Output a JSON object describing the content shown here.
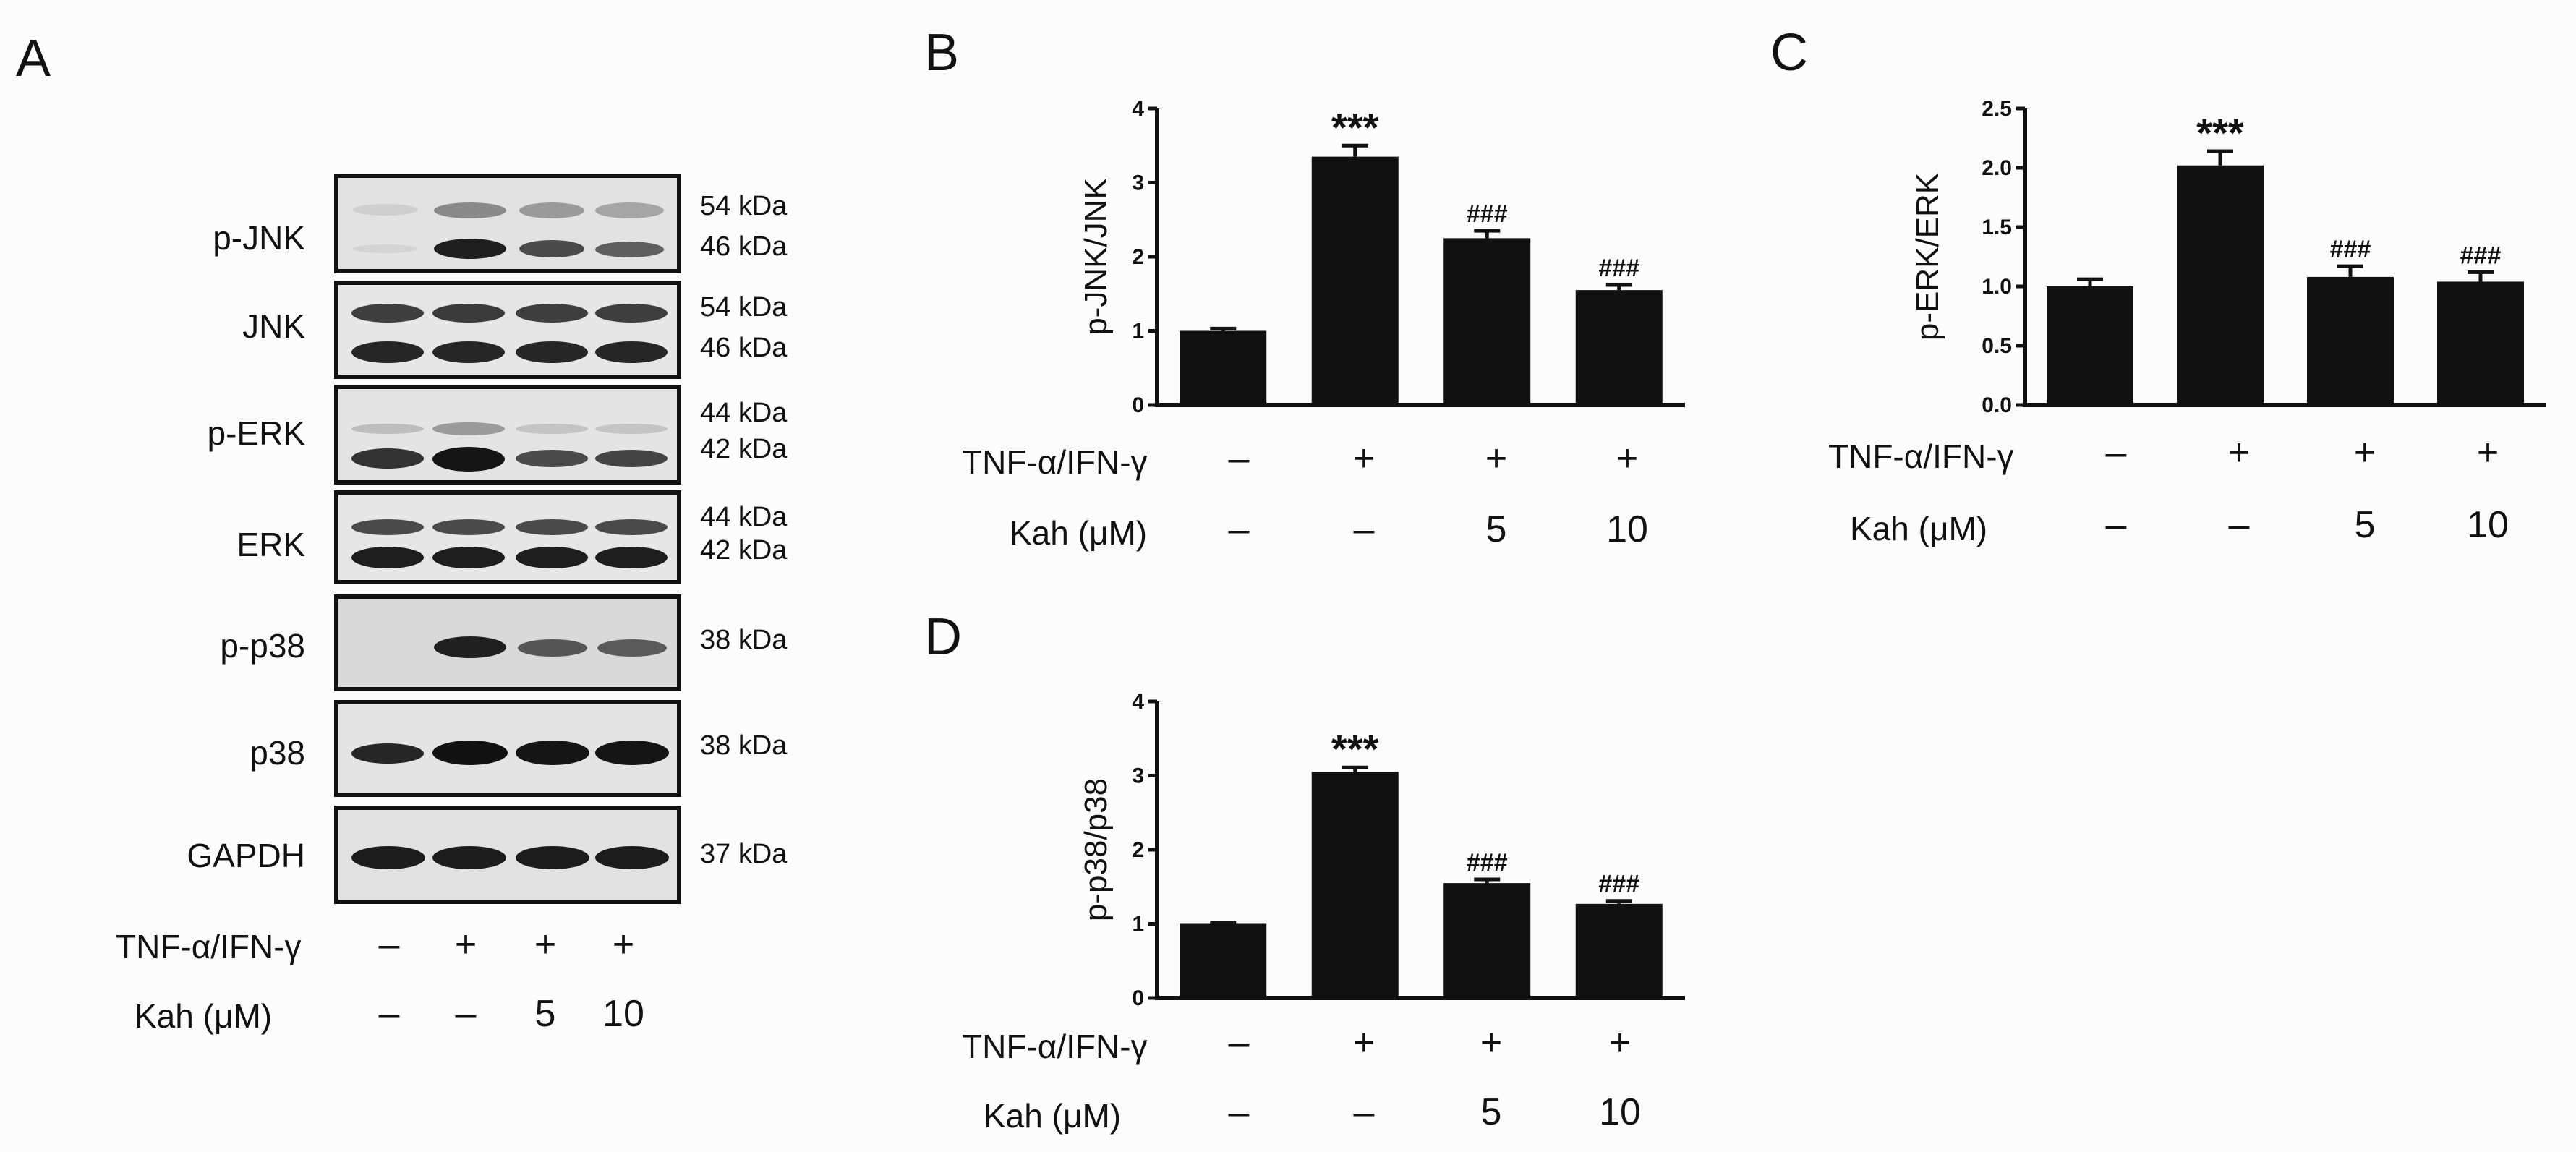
{
  "panels": {
    "A": "A",
    "B": "B",
    "C": "C",
    "D": "D"
  },
  "colors": {
    "bar": "#111111",
    "blot_bg_light": "#e4e4e4",
    "band": "#222222"
  },
  "blots": [
    {
      "name": "p-JNK",
      "kda": [
        "54 kDa",
        "46 kDa"
      ]
    },
    {
      "name": "JNK",
      "kda": [
        "54 kDa",
        "46 kDa"
      ]
    },
    {
      "name": "p-ERK",
      "kda": [
        "44 kDa",
        "42 kDa"
      ]
    },
    {
      "name": "ERK",
      "kda": [
        "44 kDa",
        "42 kDa"
      ]
    },
    {
      "name": "p-p38",
      "kda": [
        "38 kDa"
      ]
    },
    {
      "name": "p38",
      "kda": [
        "38 kDa"
      ]
    },
    {
      "name": "GAPDH",
      "kda": [
        "37 kDa"
      ]
    }
  ],
  "treatment": {
    "row1_label": "TNF-α/IFN-γ",
    "row1": [
      "–",
      "+",
      "+",
      "+"
    ],
    "row2_label": "Kah (μM)",
    "row2": [
      "–",
      "–",
      "5",
      "10"
    ]
  },
  "chart_data": [
    {
      "panel": "B",
      "type": "bar",
      "ylabel": "p-JNK/JNK",
      "ylim": [
        0,
        4
      ],
      "yticks": [
        "0",
        "1",
        "2",
        "3",
        "4"
      ],
      "categories": [
        "Control",
        "TNF-α/IFN-γ",
        "TNF-α/IFN-γ + Kah 5",
        "TNF-α/IFN-γ + Kah 10"
      ],
      "values": [
        1.0,
        3.35,
        2.25,
        1.55
      ],
      "errors": [
        0.03,
        0.15,
        0.1,
        0.07
      ],
      "annotations": [
        "",
        "***",
        "###",
        "###"
      ]
    },
    {
      "panel": "C",
      "type": "bar",
      "ylabel": "p-ERK/ERK",
      "ylim": [
        0,
        2.5
      ],
      "yticks": [
        "0.0",
        "0.5",
        "1.0",
        "1.5",
        "2.0",
        "2.5"
      ],
      "categories": [
        "Control",
        "TNF-α/IFN-γ",
        "TNF-α/IFN-γ + Kah 5",
        "TNF-α/IFN-γ + Kah 10"
      ],
      "values": [
        1.0,
        2.02,
        1.08,
        1.04
      ],
      "errors": [
        0.06,
        0.12,
        0.09,
        0.08
      ],
      "annotations": [
        "",
        "***",
        "###",
        "###"
      ]
    },
    {
      "panel": "D",
      "type": "bar",
      "ylabel": "p-p38/p38",
      "ylim": [
        0,
        4
      ],
      "yticks": [
        "0",
        "1",
        "2",
        "3",
        "4"
      ],
      "categories": [
        "Control",
        "TNF-α/IFN-γ",
        "TNF-α/IFN-γ + Kah 5",
        "TNF-α/IFN-γ + Kah 10"
      ],
      "values": [
        1.0,
        3.05,
        1.55,
        1.27
      ],
      "errors": [
        0.02,
        0.06,
        0.05,
        0.04
      ],
      "annotations": [
        "",
        "***",
        "###",
        "###"
      ]
    }
  ]
}
